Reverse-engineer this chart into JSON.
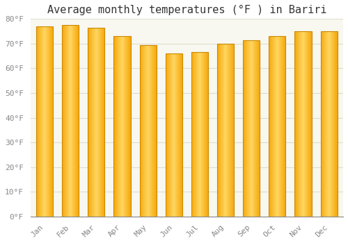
{
  "title": "Average monthly temperatures (°F ) in Bariri",
  "months": [
    "Jan",
    "Feb",
    "Mar",
    "Apr",
    "May",
    "Jun",
    "Jul",
    "Aug",
    "Sep",
    "Oct",
    "Nov",
    "Dec"
  ],
  "values": [
    77,
    77.5,
    76.5,
    73,
    69.5,
    66,
    66.5,
    70,
    71.5,
    73,
    75,
    75
  ],
  "ylim": [
    0,
    80
  ],
  "yticks": [
    0,
    10,
    20,
    30,
    40,
    50,
    60,
    70,
    80
  ],
  "ytick_labels": [
    "0°F",
    "10°F",
    "20°F",
    "30°F",
    "40°F",
    "50°F",
    "60°F",
    "70°F",
    "80°F"
  ],
  "bar_color_center": "#FFD060",
  "bar_color_edge": "#F5A800",
  "bar_edge_color": "#CC8800",
  "background_color": "#FFFFFF",
  "plot_bg_color": "#F8F8F0",
  "grid_color": "#DDDDCC",
  "title_fontsize": 11,
  "tick_fontsize": 8,
  "title_color": "#333333",
  "tick_color": "#888888",
  "bar_width": 0.65
}
